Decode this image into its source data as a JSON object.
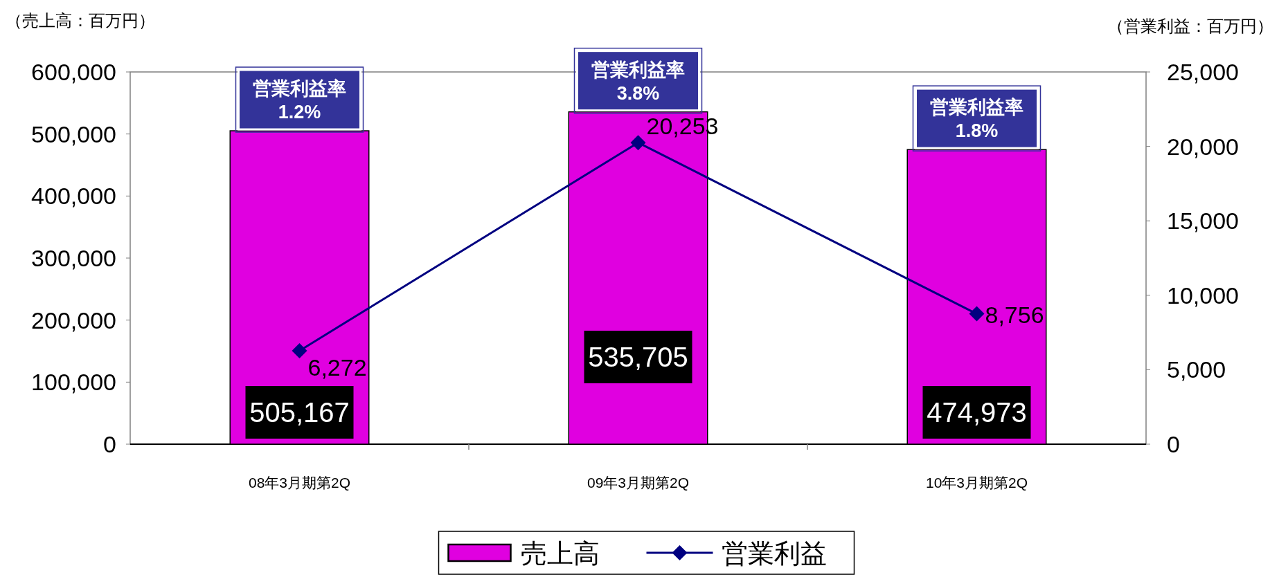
{
  "chart_data": {
    "type": "bar",
    "categories": [
      "08年3月期第2Q",
      "09年3月期第2Q",
      "10年3月期第2Q"
    ],
    "series": [
      {
        "name": "売上高",
        "color": "#e000e0",
        "values": [
          505167,
          535705,
          474973
        ],
        "value_labels": [
          "505,167",
          "535,705",
          "474,973"
        ]
      },
      {
        "name": "営業利益",
        "type": "line",
        "axis": "y2",
        "color": "#000080",
        "marker": "diamond",
        "values": [
          6272,
          20253,
          8756
        ],
        "value_labels": [
          "6,272",
          "20,253",
          "8,756"
        ]
      }
    ],
    "ylabel": "（売上高：百万円）",
    "y2label": "（営業利益：百万円）",
    "ylim": [
      0,
      600000
    ],
    "yticks": [
      0,
      {
        "value": 100000,
        "label": "100,000"
      },
      {
        "value": 200000,
        "label": "200,000"
      },
      {
        "value": 300000,
        "label": "300,000"
      },
      {
        "value": 400000,
        "label": "400,000"
      },
      {
        "value": 500000,
        "label": "500,000"
      },
      {
        "value": 600000,
        "label": "600,000"
      }
    ],
    "y2lim": [
      0,
      25000
    ],
    "y2ticks": [
      0,
      {
        "value": 5000,
        "label": "5,000"
      },
      {
        "value": 10000,
        "label": "10,000"
      },
      {
        "value": 15000,
        "label": "15,000"
      },
      {
        "value": 20000,
        "label": "20,000"
      },
      {
        "value": 25000,
        "label": "25,000"
      }
    ],
    "annotations": [
      {
        "text": "営業利益率\n1.2%",
        "x": "08年3月期第2Q",
        "y": 505167
      },
      {
        "text": "営業利益率\n3.8%",
        "x": "09年3月期第2Q",
        "y": 535705
      },
      {
        "text": "営業利益率\n1.8%",
        "x": "10年3月期第2Q",
        "y": 474973
      }
    ],
    "legend": "bottom",
    "grid": false
  }
}
